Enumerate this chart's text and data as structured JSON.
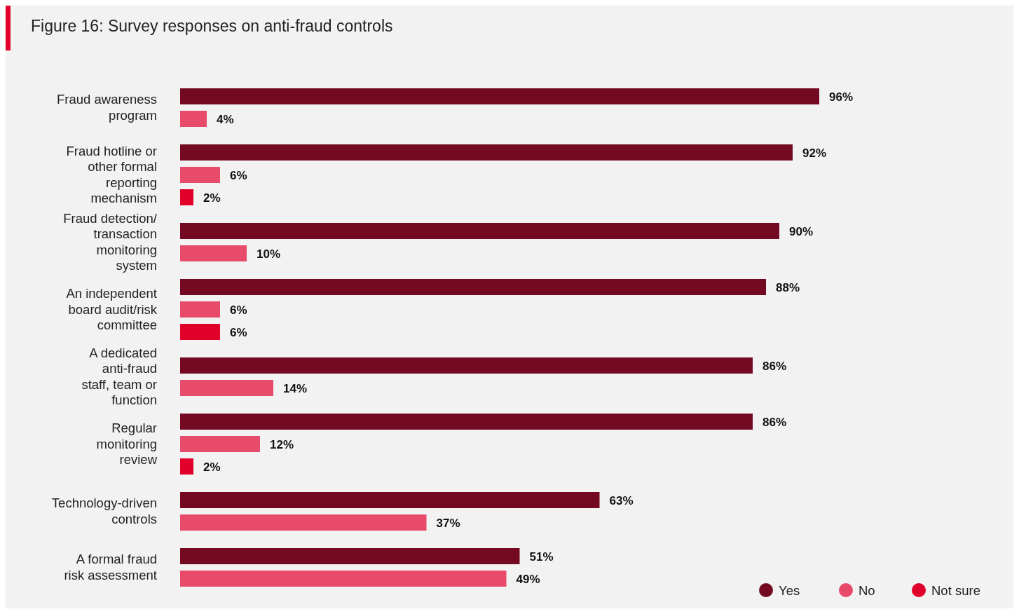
{
  "chart_data": {
    "type": "bar",
    "orientation": "horizontal",
    "title": "Figure 16: Survey responses on anti-fraud controls",
    "categories": [
      "Fraud awareness program",
      "Fraud hotline or other formal reporting mechanism",
      "Fraud detection/ transaction monitoring system",
      "An independent board audit/risk committee",
      "A dedicated anti-fraud staff, team or function",
      "Regular monitoring review",
      "Technology-driven controls",
      "A formal fraud risk assessment"
    ],
    "series": [
      {
        "name": "Yes",
        "color": "#730a22",
        "values": [
          96,
          92,
          90,
          88,
          86,
          86,
          63,
          51
        ],
        "value_labels": [
          "96%",
          "92%",
          "90%",
          "88%",
          "86%",
          "86%",
          "63%",
          "51%"
        ]
      },
      {
        "name": "No",
        "color": "#e84a6a",
        "values": [
          4,
          6,
          10,
          6,
          14,
          12,
          37,
          49
        ],
        "value_labels": [
          "4%",
          "6%",
          "10%",
          "6%",
          "14%",
          "12%",
          "37%",
          "49%"
        ]
      },
      {
        "name": "Not sure",
        "color": "#e0002a",
        "values": [
          null,
          2,
          null,
          6,
          null,
          2,
          null,
          null
        ],
        "value_labels": [
          null,
          "2%",
          null,
          "6%",
          null,
          "2%",
          null,
          null
        ]
      }
    ],
    "legend": "bottom right"
  }
}
